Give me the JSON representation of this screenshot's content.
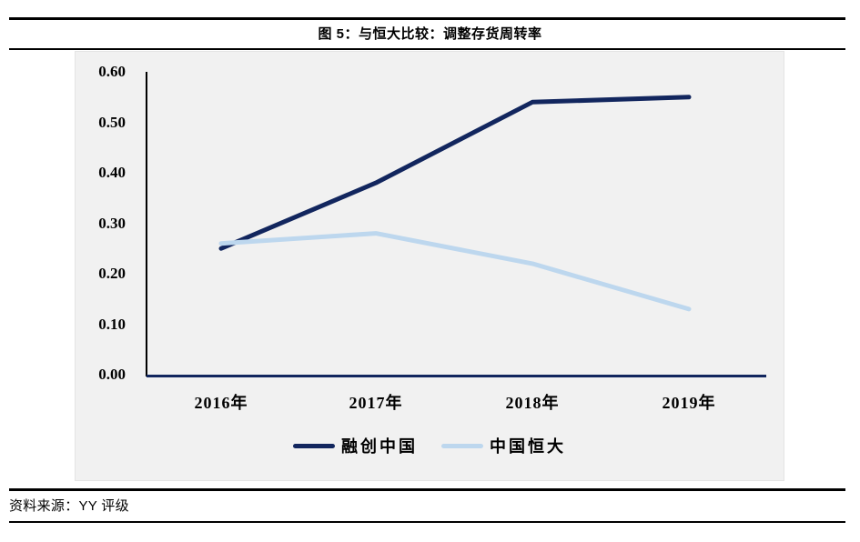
{
  "title": "图 5：与恒大比较：调整存货周转率",
  "source": "资料来源：YY 评级",
  "colors": {
    "navy": "#12265e",
    "light_blue": "#bdd7ee",
    "plot_bg": "#f1f1f1",
    "rule": "#000000"
  },
  "chart_data": {
    "type": "line",
    "title": "图 5：与恒大比较：调整存货周转率",
    "categories": [
      "2016年",
      "2017年",
      "2018年",
      "2019年"
    ],
    "series": [
      {
        "name": "融创中国",
        "color": "#12265e",
        "values": [
          0.25,
          0.38,
          0.54,
          0.55
        ]
      },
      {
        "name": "中国恒大",
        "color": "#bdd7ee",
        "values": [
          0.26,
          0.28,
          0.22,
          0.13
        ]
      }
    ],
    "ylim": [
      0.0,
      0.6
    ],
    "yticks": [
      0.0,
      0.1,
      0.2,
      0.3,
      0.4,
      0.5,
      0.6
    ],
    "ytick_labels": [
      "0.00",
      "0.10",
      "0.20",
      "0.30",
      "0.40",
      "0.50",
      "0.60"
    ],
    "xlabel": "",
    "ylabel": "",
    "grid": false,
    "legend_position": "bottom",
    "axis_color": "#000000",
    "baseline_color": "#12265e"
  }
}
